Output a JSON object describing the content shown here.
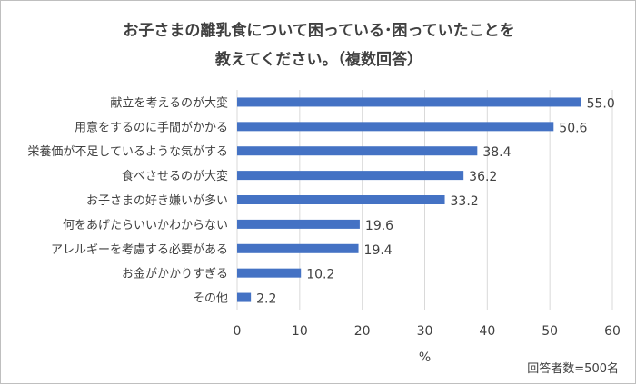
{
  "chart_data": {
    "type": "bar",
    "orientation": "horizontal",
    "title": "お子さまの離乳食について困っている･困っていたことを 教えてください。（複数回答）",
    "title_lines": [
      "お子さまの離乳食について困っている･困っていたことを",
      "教えてください。（複数回答）"
    ],
    "categories": [
      "献立を考えるのが大変",
      "用意をするのに手間がかかる",
      "栄養価が不足しているような気がする",
      "食べさせるのが大変",
      "お子さまの好き嫌いが多い",
      "何をあげたらいいかわからない",
      "アレルギーを考慮する必要がある",
      "お金がかかりすぎる",
      "その他"
    ],
    "values": [
      55.0,
      50.6,
      38.4,
      36.2,
      33.2,
      19.6,
      19.4,
      10.2,
      2.2
    ],
    "value_labels": [
      "55.0",
      "50.6",
      "38.4",
      "36.2",
      "33.2",
      "19.6",
      "19.4",
      "10.2",
      "2.2"
    ],
    "xlabel": "%",
    "xlim": [
      0,
      60
    ],
    "xticks": [
      "0",
      "10",
      "20",
      "30",
      "40",
      "50",
      "60"
    ],
    "grid": true,
    "bar_color": "#4472c4",
    "note": "回答者数=500名"
  }
}
